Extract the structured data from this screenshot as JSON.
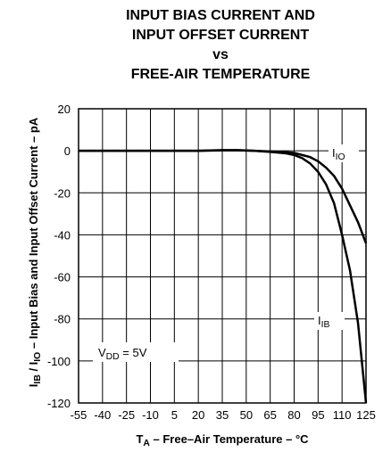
{
  "chart_data": {
    "type": "line",
    "title": [
      "INPUT BIAS CURRENT AND",
      "INPUT OFFSET CURRENT",
      "vs",
      "FREE-AIR TEMPERATURE"
    ],
    "x_label": [
      "T",
      "A",
      " – Free–Air Temperature – °C"
    ],
    "y_label": [
      "I",
      "IB",
      " / I",
      "IO",
      " – Input Bias and Input Offset Current – pA"
    ],
    "x": [
      -55,
      -40,
      -25,
      -10,
      5,
      20,
      35,
      45,
      55,
      65,
      75,
      80,
      85,
      90,
      95,
      100,
      105,
      110,
      115,
      120,
      125
    ],
    "series": [
      {
        "name": [
          "I",
          "IO"
        ],
        "color": "#000000",
        "values": [
          0,
          0,
          0,
          0,
          0,
          0,
          0.2,
          0.2,
          0,
          -0.3,
          -0.7,
          -1,
          -2,
          -3,
          -5,
          -8,
          -12,
          -18,
          -26,
          -34,
          -44
        ]
      },
      {
        "name": [
          "I",
          "IB"
        ],
        "color": "#000000",
        "values": [
          0,
          0,
          0,
          0,
          0,
          0,
          0.3,
          0.3,
          0,
          -0.5,
          -1.2,
          -2,
          -3.5,
          -6,
          -10,
          -16,
          -25,
          -40,
          -57,
          -82,
          -120
        ]
      }
    ],
    "annotation": [
      "V",
      "DD",
      " = 5V"
    ],
    "xlim": [
      -55,
      125
    ],
    "ylim": [
      -120,
      20
    ],
    "xticks": [
      -55,
      -40,
      -25,
      -10,
      5,
      20,
      35,
      50,
      65,
      80,
      95,
      110,
      125
    ],
    "yticks": [
      20,
      0,
      -20,
      -40,
      -60,
      -80,
      -100,
      -120
    ],
    "grid": true
  }
}
